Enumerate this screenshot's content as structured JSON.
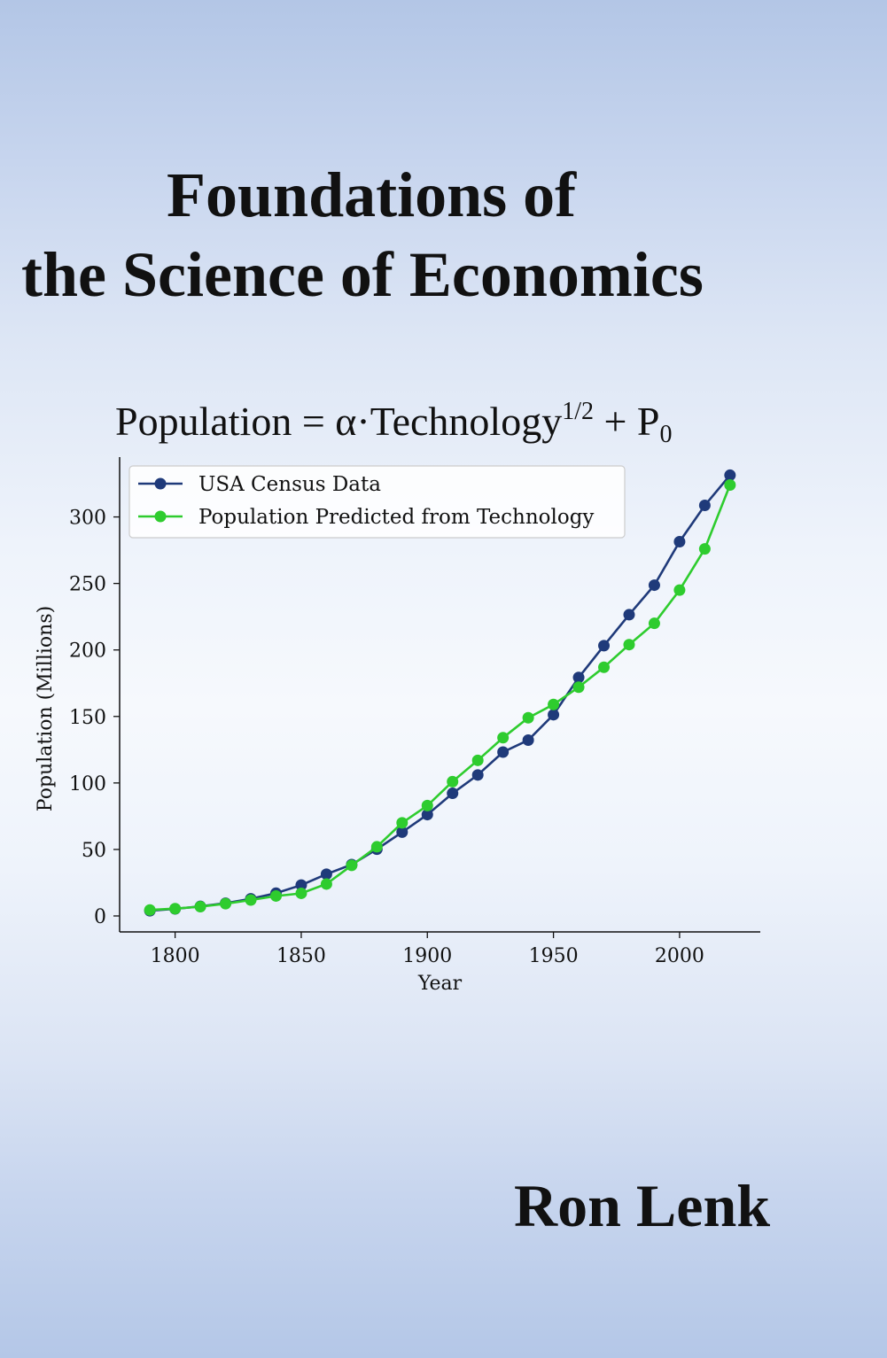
{
  "cover": {
    "title_line1": "Foundations of",
    "title_line2": "the Science of Economics",
    "formula": {
      "main": "Population = α·Technology",
      "exponent": "1/2",
      "plus": " + P",
      "subscript": "0"
    },
    "author": "Ron Lenk"
  },
  "chart_data": {
    "type": "line",
    "xlabel": "Year",
    "ylabel": "Population (Millions)",
    "xlim": [
      1778,
      2032
    ],
    "ylim": [
      -12,
      345
    ],
    "xticks": [
      1800,
      1850,
      1900,
      1950,
      2000
    ],
    "yticks": [
      0,
      50,
      100,
      150,
      200,
      250,
      300
    ],
    "legend_position": "upper-left",
    "grid": false,
    "x": [
      1790,
      1800,
      1810,
      1820,
      1830,
      1840,
      1850,
      1860,
      1870,
      1880,
      1890,
      1900,
      1910,
      1920,
      1930,
      1940,
      1950,
      1960,
      1970,
      1980,
      1990,
      2000,
      2010,
      2020
    ],
    "series": [
      {
        "name": "USA Census Data",
        "color": "#1f3a7a",
        "values": [
          3.9,
          5.3,
          7.2,
          9.6,
          12.9,
          17.1,
          23.2,
          31.4,
          38.6,
          50.2,
          63.0,
          76.2,
          92.2,
          106.0,
          123.2,
          132.2,
          151.3,
          179.3,
          203.2,
          226.5,
          248.7,
          281.4,
          308.7,
          331.4
        ]
      },
      {
        "name": "Population Predicted from Technology",
        "color": "#2ecc2e",
        "values": [
          4.5,
          5.5,
          7.0,
          9.2,
          12.0,
          15.0,
          17.0,
          24.0,
          38.0,
          52.0,
          70.0,
          83.0,
          101.0,
          117.0,
          134.0,
          149.0,
          159.0,
          172.0,
          187.0,
          204.0,
          220.0,
          245.0,
          276.0,
          324.0
        ]
      }
    ]
  }
}
